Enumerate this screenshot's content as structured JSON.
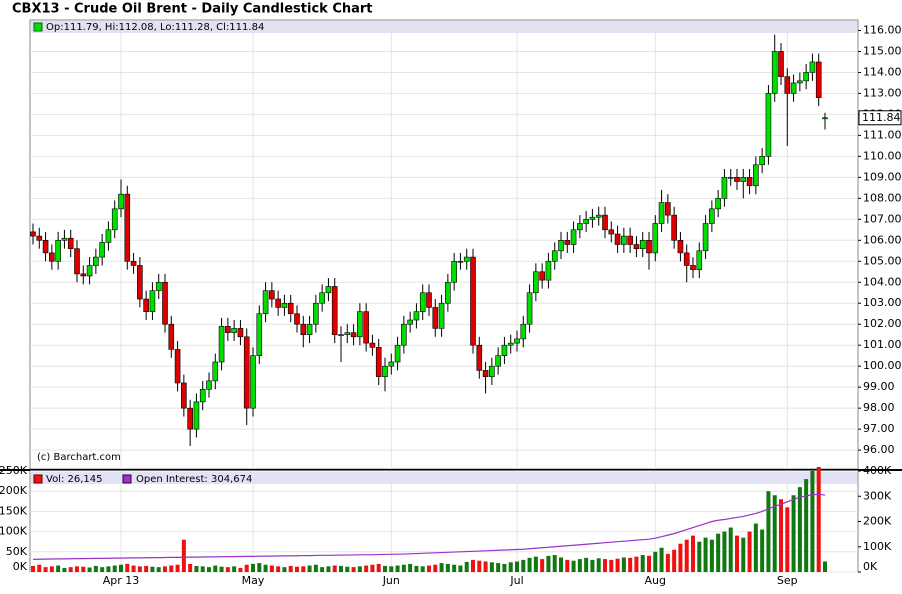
{
  "chart_data": {
    "type": "candlestick",
    "title": "CBX13 - Crude Oil Brent - Daily Candlestick Chart",
    "legend_text": "Op:111.79, Hi:112.08, Lo:111.28, Cl:111.84",
    "credit": "(c) Barchart.com",
    "volume_legend": "Vol: 26,145",
    "open_interest_legend": "Open Interest: 304,674",
    "up_color": "#00dd00",
    "down_color": "#dd0000",
    "volume_up_color": "#117711",
    "volume_down_color": "#ee1111",
    "open_interest_color": "#9933cc",
    "grid": true,
    "categories": [
      null,
      null,
      null,
      null,
      null,
      null,
      null,
      null,
      null,
      null,
      null,
      null,
      null,
      null,
      "Apr 13",
      null,
      null,
      null,
      null,
      null,
      null,
      null,
      null,
      null,
      null,
      null,
      null,
      null,
      null,
      null,
      null,
      null,
      null,
      null,
      null,
      "May",
      null,
      null,
      null,
      null,
      null,
      null,
      null,
      null,
      null,
      null,
      null,
      null,
      null,
      null,
      null,
      null,
      null,
      null,
      null,
      null,
      null,
      "Jun",
      null,
      null,
      null,
      null,
      null,
      null,
      null,
      null,
      null,
      null,
      null,
      null,
      null,
      null,
      null,
      null,
      null,
      null,
      null,
      "Jul",
      null,
      null,
      null,
      null,
      null,
      null,
      null,
      null,
      null,
      null,
      null,
      null,
      null,
      null,
      null,
      null,
      null,
      null,
      null,
      null,
      null,
      "Aug",
      null,
      null,
      null,
      null,
      null,
      null,
      null,
      null,
      null,
      null,
      null,
      null,
      null,
      null,
      null,
      null,
      null,
      null,
      null,
      null,
      "Sep",
      null,
      null,
      null,
      null,
      null,
      null
    ],
    "open": [
      106.4,
      106.2,
      106.0,
      105.4,
      105.0,
      106.0,
      106.1,
      105.6,
      104.4,
      104.3,
      104.8,
      105.2,
      105.9,
      106.5,
      107.5,
      108.2,
      105.0,
      104.8,
      103.2,
      102.6,
      103.6,
      104.0,
      102.0,
      100.8,
      99.2,
      98.0,
      97.0,
      98.3,
      98.9,
      99.3,
      100.2,
      101.9,
      101.6,
      101.8,
      101.4,
      98.0,
      100.5,
      102.5,
      103.6,
      103.2,
      102.8,
      103.0,
      102.5,
      102.0,
      101.5,
      102.0,
      103.0,
      103.5,
      103.8,
      101.5,
      101.5,
      101.6,
      101.4,
      102.6,
      101.1,
      100.9,
      99.5,
      100.0,
      100.2,
      101.0,
      102.0,
      102.2,
      102.6,
      103.5,
      102.8,
      101.8,
      103.0,
      104.0,
      105.0,
      105.0,
      105.2,
      101.0,
      99.8,
      99.5,
      100.0,
      100.5,
      101.0,
      101.1,
      101.3,
      102.0,
      103.5,
      104.5,
      104.1,
      105.0,
      105.5,
      106.0,
      105.8,
      106.5,
      106.8,
      107.0,
      107.1,
      107.2,
      106.5,
      106.3,
      105.8,
      106.2,
      105.8,
      105.6,
      106.0,
      105.4,
      106.8,
      107.8,
      107.2,
      106.0,
      105.4,
      104.8,
      104.6,
      105.5,
      106.8,
      107.5,
      108.0,
      109.0,
      109.0,
      108.8,
      109.0,
      108.6,
      109.6,
      110.0,
      113.0,
      115.0,
      113.8,
      113.0,
      113.5,
      113.6,
      114.0,
      114.5,
      111.79
    ],
    "high": [
      106.8,
      106.6,
      106.4,
      105.8,
      106.4,
      106.5,
      106.5,
      106.0,
      104.8,
      105.2,
      105.6,
      106.3,
      106.9,
      107.9,
      108.9,
      108.6,
      105.4,
      105.2,
      103.6,
      104.0,
      104.4,
      104.4,
      102.4,
      101.2,
      99.6,
      98.4,
      98.7,
      99.3,
      99.7,
      100.6,
      102.3,
      102.3,
      102.2,
      102.2,
      101.8,
      100.9,
      102.9,
      104.0,
      104.0,
      103.6,
      103.4,
      103.4,
      102.9,
      102.4,
      102.4,
      103.4,
      103.9,
      104.2,
      104.2,
      101.9,
      102.0,
      102.0,
      103.0,
      103.0,
      101.5,
      101.3,
      100.4,
      100.6,
      101.4,
      102.4,
      102.6,
      103.0,
      103.9,
      103.9,
      103.2,
      103.4,
      104.4,
      105.4,
      105.4,
      105.6,
      105.6,
      101.4,
      100.2,
      100.4,
      100.9,
      101.4,
      101.5,
      101.7,
      102.4,
      103.9,
      104.9,
      104.9,
      105.4,
      105.9,
      106.4,
      106.4,
      106.9,
      107.2,
      107.4,
      107.5,
      107.6,
      107.6,
      106.9,
      106.7,
      106.6,
      106.6,
      106.2,
      106.4,
      106.4,
      107.2,
      108.4,
      108.2,
      107.6,
      106.4,
      105.8,
      105.2,
      105.9,
      107.2,
      107.9,
      108.4,
      109.4,
      109.4,
      109.4,
      109.4,
      109.4,
      110.0,
      110.4,
      113.4,
      115.8,
      115.4,
      114.2,
      113.9,
      114.0,
      114.4,
      114.9,
      114.9,
      112.08
    ],
    "low": [
      105.8,
      105.6,
      105.0,
      104.6,
      104.6,
      105.6,
      105.2,
      104.0,
      103.9,
      103.9,
      104.4,
      104.8,
      105.5,
      106.1,
      107.1,
      104.6,
      104.4,
      102.8,
      102.2,
      102.2,
      103.2,
      101.6,
      100.4,
      98.8,
      97.6,
      96.2,
      96.6,
      97.9,
      98.5,
      98.9,
      99.8,
      101.2,
      101.2,
      101.0,
      97.2,
      97.6,
      100.1,
      102.1,
      102.8,
      102.4,
      102.4,
      102.1,
      101.6,
      100.9,
      101.1,
      101.6,
      102.6,
      103.1,
      101.1,
      100.2,
      101.1,
      101.0,
      101.0,
      100.7,
      100.5,
      99.1,
      98.8,
      99.6,
      99.8,
      100.6,
      101.6,
      101.8,
      102.2,
      102.4,
      101.4,
      101.4,
      102.6,
      103.6,
      104.6,
      104.6,
      100.6,
      99.4,
      98.7,
      99.1,
      99.6,
      100.1,
      100.6,
      100.7,
      100.9,
      101.6,
      103.1,
      103.7,
      103.7,
      104.6,
      105.1,
      105.4,
      105.4,
      106.1,
      106.4,
      106.6,
      106.7,
      106.1,
      105.9,
      105.4,
      105.4,
      105.4,
      105.2,
      105.2,
      104.6,
      105.0,
      106.4,
      106.8,
      105.6,
      105.0,
      104.0,
      104.2,
      104.2,
      105.1,
      106.4,
      107.1,
      107.6,
      108.6,
      108.4,
      108.0,
      108.2,
      108.2,
      109.2,
      109.6,
      112.6,
      113.4,
      110.5,
      112.6,
      113.1,
      113.2,
      113.6,
      112.4,
      111.28
    ],
    "close": [
      106.2,
      106.0,
      105.4,
      105.0,
      106.0,
      106.1,
      105.6,
      104.4,
      104.3,
      104.8,
      105.2,
      105.9,
      106.5,
      107.5,
      108.2,
      105.0,
      104.8,
      103.2,
      102.6,
      103.6,
      104.0,
      102.0,
      100.8,
      99.2,
      98.0,
      97.0,
      98.3,
      98.9,
      99.3,
      100.2,
      101.9,
      101.6,
      101.8,
      101.4,
      98.0,
      100.5,
      102.5,
      103.6,
      103.2,
      102.8,
      103.0,
      102.5,
      102.0,
      101.5,
      102.0,
      103.0,
      103.5,
      103.8,
      101.5,
      101.5,
      101.6,
      101.4,
      102.6,
      101.1,
      100.9,
      99.5,
      100.0,
      100.2,
      101.0,
      102.0,
      102.2,
      102.6,
      103.5,
      102.8,
      101.8,
      103.0,
      104.0,
      105.0,
      105.0,
      105.2,
      101.0,
      99.8,
      99.5,
      100.0,
      100.5,
      101.0,
      101.1,
      101.3,
      102.0,
      103.5,
      104.5,
      104.1,
      105.0,
      105.5,
      106.0,
      105.8,
      106.5,
      106.8,
      107.0,
      107.1,
      107.2,
      106.5,
      106.3,
      105.8,
      106.2,
      105.8,
      105.6,
      106.0,
      105.4,
      106.8,
      107.8,
      107.2,
      106.0,
      105.4,
      104.8,
      104.6,
      105.5,
      106.8,
      107.5,
      108.0,
      109.0,
      109.0,
      108.8,
      109.0,
      108.6,
      109.6,
      110.0,
      113.0,
      115.0,
      113.8,
      113.0,
      113.5,
      113.6,
      114.0,
      114.5,
      112.8,
      111.84
    ],
    "volume": [
      15000,
      18000,
      12000,
      14000,
      16000,
      10000,
      12000,
      14000,
      13000,
      11000,
      15000,
      12000,
      14000,
      16000,
      18000,
      20000,
      16000,
      14000,
      15000,
      13000,
      12000,
      14000,
      16000,
      18000,
      80000,
      20000,
      15000,
      14000,
      12000,
      16000,
      13000,
      12000,
      14000,
      10000,
      18000,
      20000,
      22000,
      18000,
      16000,
      14000,
      12000,
      15000,
      13000,
      14000,
      16000,
      18000,
      12000,
      14000,
      16000,
      15000,
      13000,
      12000,
      14000,
      16000,
      18000,
      20000,
      15000,
      14000,
      16000,
      18000,
      20000,
      15000,
      14000,
      16000,
      18000,
      22000,
      20000,
      18000,
      16000,
      25000,
      30000,
      28000,
      26000,
      24000,
      22000,
      20000,
      24000,
      26000,
      30000,
      35000,
      38000,
      32000,
      40000,
      42000,
      36000,
      30000,
      28000,
      32000,
      35000,
      30000,
      34000,
      32000,
      30000,
      33000,
      36000,
      35000,
      38000,
      42000,
      40000,
      50000,
      60000,
      45000,
      55000,
      70000,
      80000,
      90000,
      75000,
      85000,
      80000,
      95000,
      100000,
      110000,
      90000,
      85000,
      100000,
      120000,
      105000,
      200000,
      190000,
      180000,
      160000,
      190000,
      210000,
      230000,
      250000,
      260000,
      26145
    ],
    "open_interest": [
      50000,
      50500,
      51000,
      51500,
      52000,
      52000,
      52500,
      53000,
      53000,
      53500,
      54000,
      54000,
      54500,
      55000,
      55000,
      55500,
      56000,
      56000,
      56500,
      57000,
      57000,
      57500,
      58000,
      58000,
      58500,
      59000,
      59000,
      59500,
      60000,
      60000,
      60500,
      61000,
      61000,
      61500,
      62000,
      62000,
      62500,
      63000,
      63000,
      63500,
      64000,
      64000,
      64500,
      65000,
      65000,
      65500,
      66000,
      66000,
      66500,
      67000,
      67000,
      67500,
      68000,
      68000,
      68500,
      69000,
      69500,
      70000,
      70500,
      71000,
      72000,
      73000,
      74000,
      75000,
      76000,
      77000,
      78000,
      79000,
      80000,
      81000,
      82000,
      83000,
      84000,
      85000,
      86000,
      87000,
      88000,
      89000,
      90000,
      92000,
      94000,
      96000,
      98000,
      100000,
      102000,
      104000,
      106000,
      108000,
      110000,
      112000,
      114000,
      116000,
      118000,
      120000,
      122000,
      124000,
      126000,
      128000,
      130000,
      134000,
      140000,
      146000,
      152000,
      160000,
      168000,
      176000,
      184000,
      192000,
      200000,
      205000,
      208000,
      212000,
      216000,
      220000,
      226000,
      232000,
      240000,
      250000,
      260000,
      268000,
      278000,
      288000,
      296000,
      302000,
      306000,
      308000,
      304674
    ],
    "ylim": [
      95.1,
      116.5
    ],
    "yticks": [
      {
        "value": 96,
        "label": "96.00"
      },
      {
        "value": 97,
        "label": "97.00"
      },
      {
        "value": 98,
        "label": "98.00"
      },
      {
        "value": 99,
        "label": "99.00"
      },
      {
        "value": 100,
        "label": "100.00"
      },
      {
        "value": 101,
        "label": "101.00"
      },
      {
        "value": 102,
        "label": "102.00"
      },
      {
        "value": 103,
        "label": "103.00"
      },
      {
        "value": 104,
        "label": "104.00"
      },
      {
        "value": 105,
        "label": "105.00"
      },
      {
        "value": 106,
        "label": "106.00"
      },
      {
        "value": 107,
        "label": "107.00"
      },
      {
        "value": 108,
        "label": "108.00"
      },
      {
        "value": 109,
        "label": "109.00"
      },
      {
        "value": 110,
        "label": "110.00"
      },
      {
        "value": 111,
        "label": "111.00"
      },
      {
        "value": 112,
        "label": "112.00"
      },
      {
        "value": 113,
        "label": "113.00"
      },
      {
        "value": 114,
        "label": "114.00"
      },
      {
        "value": 115,
        "label": "115.00"
      },
      {
        "value": 116,
        "label": "116.00"
      }
    ],
    "volume_ylim": [
      0,
      250000
    ],
    "volume_yticks": [
      {
        "value": 0,
        "label": "0K"
      },
      {
        "value": 50000,
        "label": "50K"
      },
      {
        "value": 100000,
        "label": "100K"
      },
      {
        "value": 150000,
        "label": "150K"
      },
      {
        "value": 200000,
        "label": "200K"
      },
      {
        "value": 250000,
        "label": "250K"
      }
    ],
    "y2lim": [
      0,
      400000
    ],
    "y2ticks": [
      {
        "value": 0,
        "label": "0K"
      },
      {
        "value": 100000,
        "label": "100K"
      },
      {
        "value": 200000,
        "label": "200K"
      },
      {
        "value": 300000,
        "label": "300K"
      },
      {
        "value": 400000,
        "label": "400K"
      }
    ]
  }
}
